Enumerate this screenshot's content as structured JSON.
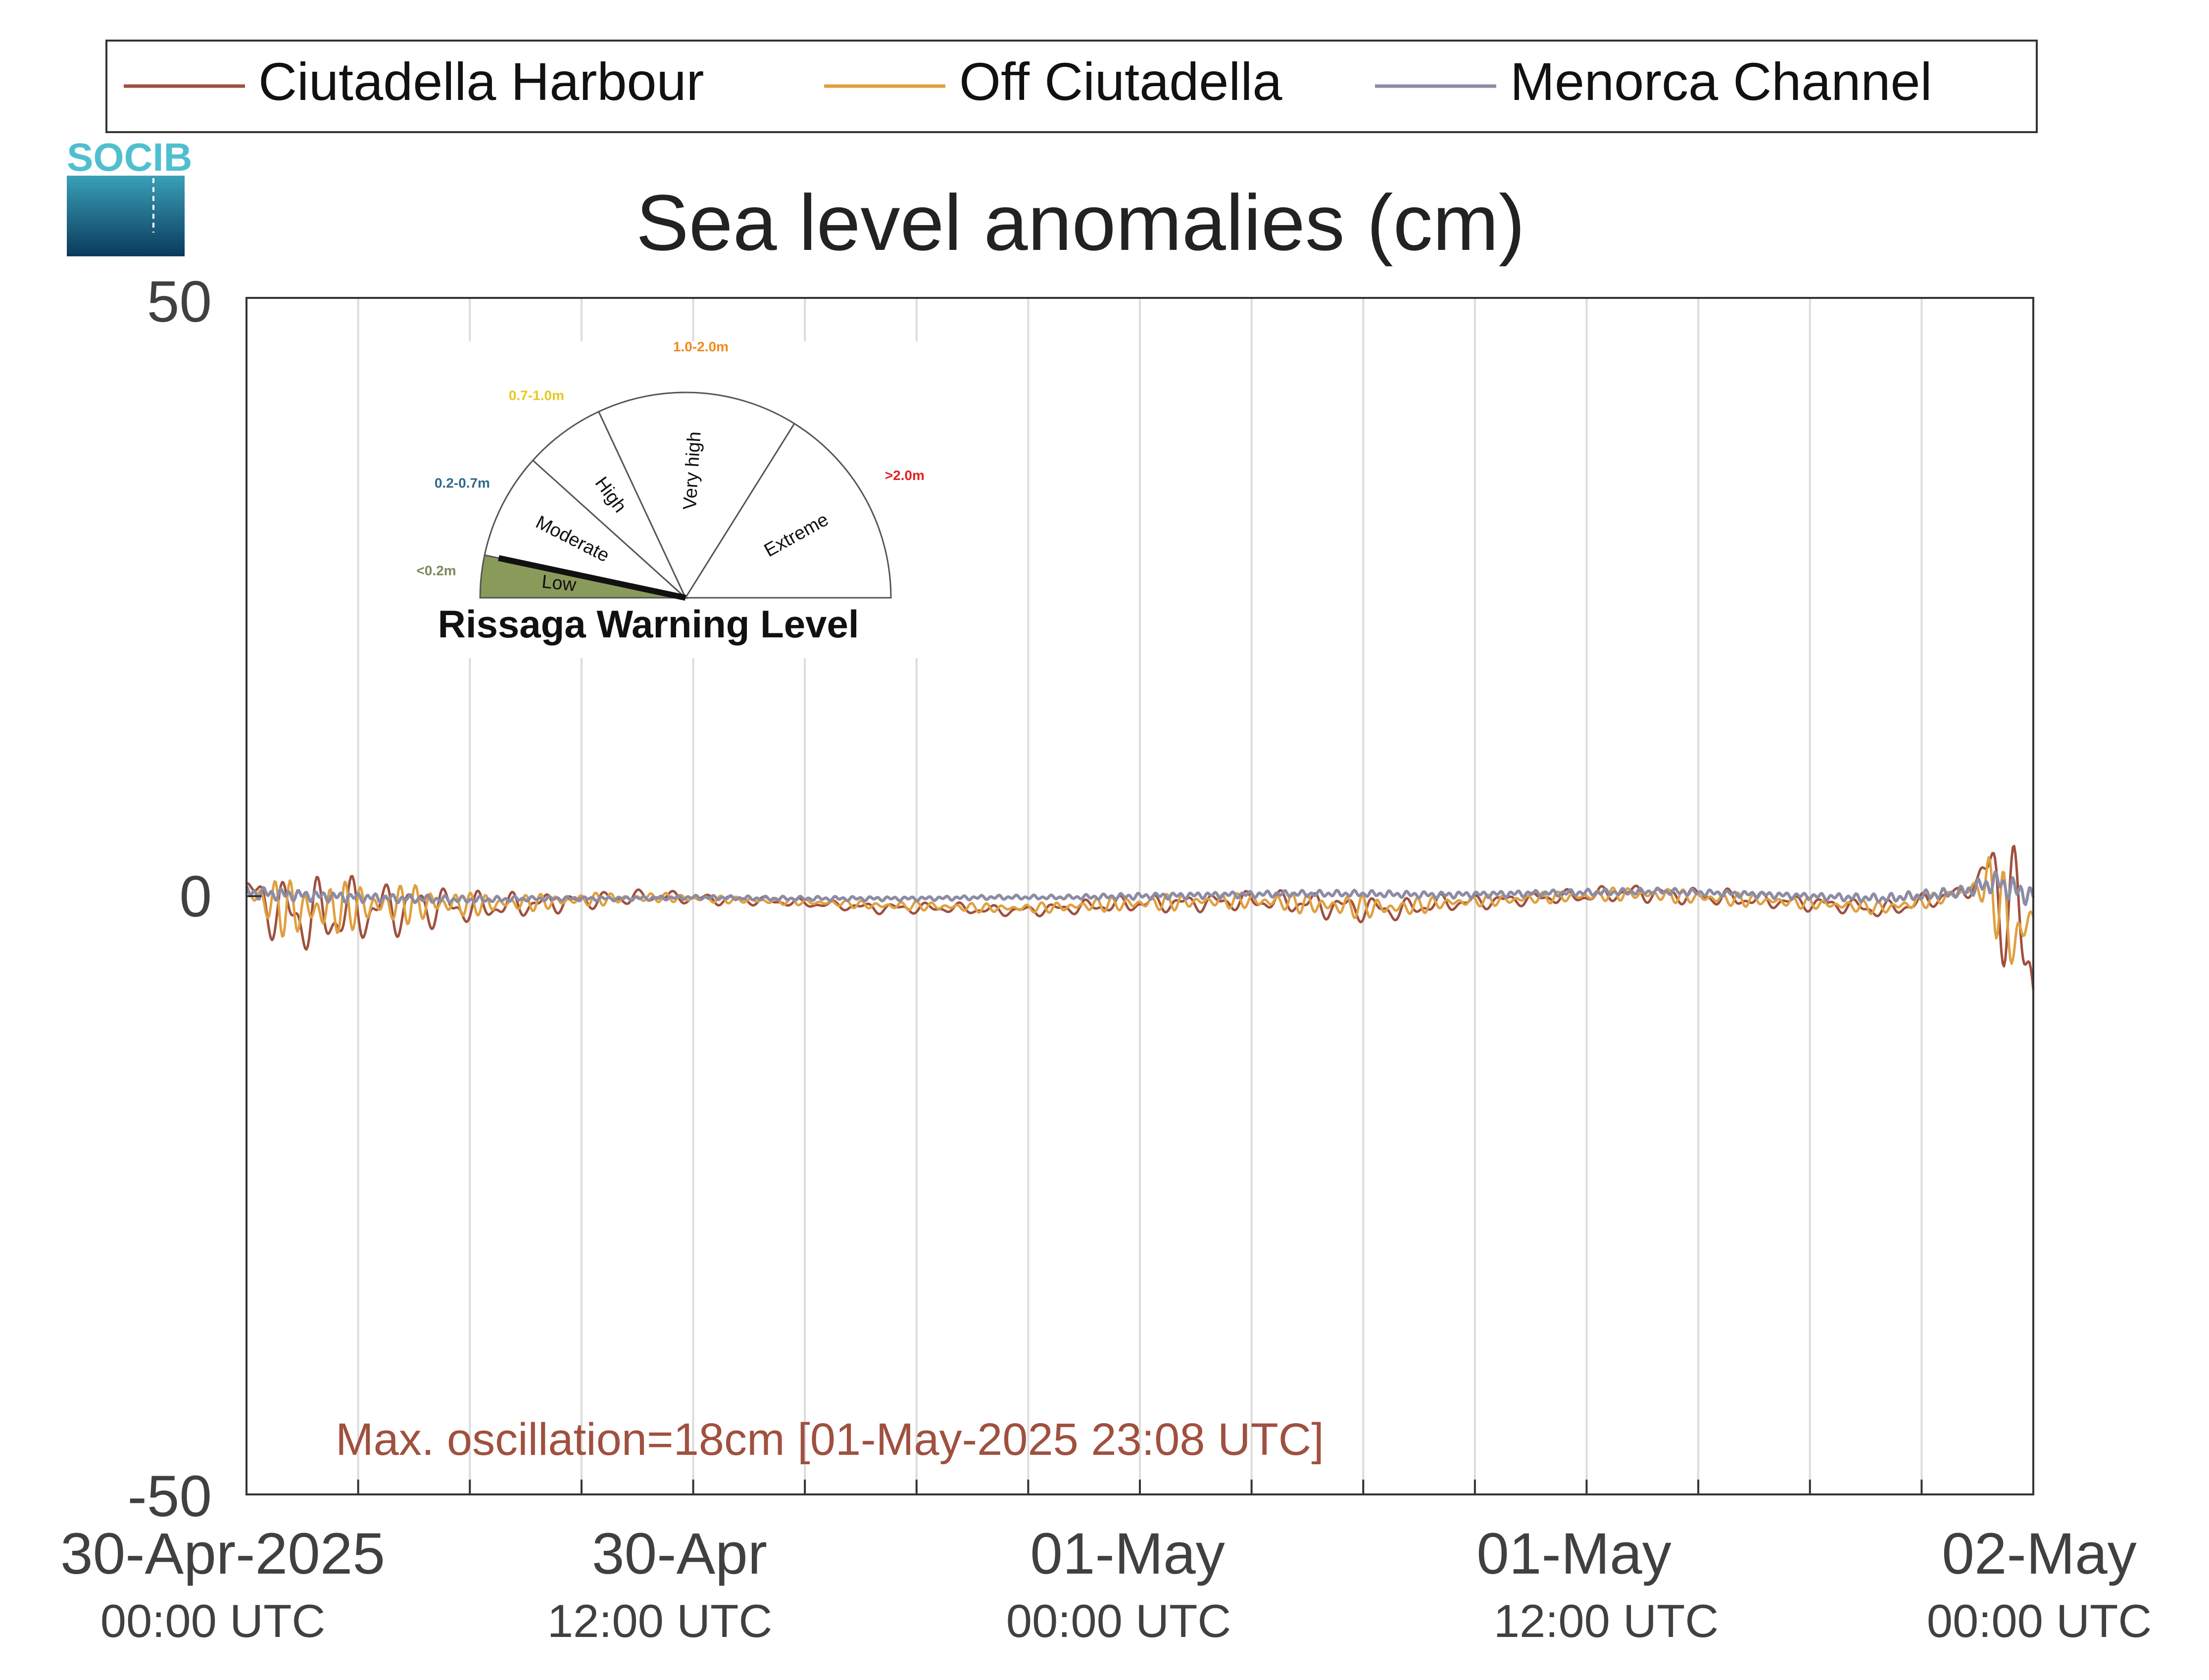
{
  "legend": [
    {
      "name": "Ciutadella Harbour",
      "color": "#a0503f"
    },
    {
      "name": "Off Ciutadella",
      "color": "#e0a040"
    },
    {
      "name": "Menorca Channel",
      "color": "#8c8ca4"
    }
  ],
  "logo": {
    "text": "SOCIB",
    "color": "#4fbfd0"
  },
  "chart_data": {
    "type": "line",
    "title": "Sea level anomalies (cm)",
    "ylim": [
      -50,
      50
    ],
    "yticks": [
      50,
      0,
      -50
    ],
    "ytick_labels": [
      "50",
      "0",
      "-50"
    ],
    "x_unit": "hours since 30-Apr-2025 00:00 UTC",
    "xlim": [
      0,
      48
    ],
    "xticks": [
      {
        "x": 0,
        "date": "30-Apr-2025",
        "time": "00:00 UTC"
      },
      {
        "x": 12,
        "date": "30-Apr",
        "time": "12:00 UTC"
      },
      {
        "x": 24,
        "date": "01-May",
        "time": "00:00 UTC"
      },
      {
        "x": 36,
        "date": "01-May",
        "time": "12:00 UTC"
      },
      {
        "x": 48,
        "date": "02-May",
        "time": "00:00 UTC"
      }
    ],
    "grid_x_hours": [
      0,
      3,
      6,
      9,
      12,
      15,
      18,
      21,
      24,
      27,
      30,
      33,
      36,
      39,
      42,
      45,
      48
    ],
    "grid": "vertical",
    "legend_position": "top",
    "series": [
      {
        "name": "Ciutadella Harbour",
        "x": [
          0,
          1,
          2,
          3,
          4,
          5,
          6,
          7,
          8,
          9,
          10,
          11,
          12,
          13,
          14,
          15,
          16,
          17,
          18,
          19,
          20,
          21,
          22,
          23,
          24,
          25,
          26,
          27,
          28,
          29,
          30,
          31,
          32,
          33,
          34,
          35,
          36,
          37,
          38,
          39,
          40,
          41,
          42,
          43,
          44,
          45,
          46,
          46.5,
          47,
          47.5,
          48
        ],
        "y": [
          0.5,
          -1.5,
          -1.8,
          -1.2,
          -1.0,
          -0.8,
          -1.0,
          -0.8,
          -0.6,
          -0.4,
          -0.2,
          0.0,
          -0.2,
          -0.3,
          -0.4,
          -0.6,
          -0.8,
          -1.0,
          -1.0,
          -1.0,
          -1.2,
          -1.2,
          -1.0,
          -0.8,
          -0.6,
          -0.6,
          -0.5,
          -0.4,
          -0.5,
          -0.8,
          -1.0,
          -1.2,
          -0.6,
          -0.5,
          -0.3,
          -0.1,
          0.0,
          0.3,
          0.2,
          0.0,
          -0.2,
          -0.4,
          -0.6,
          -0.8,
          -1.2,
          -0.5,
          0.3,
          1.0,
          2.5,
          -3.0,
          -5.0
        ],
        "amplitude": [
          1.5,
          3.5,
          3.5,
          3.0,
          2.5,
          2.0,
          1.5,
          1.2,
          1.0,
          0.8,
          0.7,
          0.6,
          0.5,
          0.5,
          0.4,
          0.4,
          0.4,
          0.5,
          0.5,
          0.5,
          0.5,
          0.5,
          0.6,
          0.7,
          0.8,
          0.8,
          0.8,
          0.9,
          1.0,
          1.2,
          1.2,
          1.0,
          0.8,
          0.7,
          0.6,
          0.6,
          0.7,
          0.8,
          0.8,
          0.8,
          0.8,
          0.7,
          0.7,
          0.7,
          0.8,
          0.8,
          0.6,
          1.0,
          6.0,
          8.0,
          8.0
        ]
      },
      {
        "name": "Off Ciutadella",
        "x": [
          0,
          1,
          2,
          3,
          4,
          5,
          6,
          7,
          8,
          9,
          10,
          11,
          12,
          13,
          14,
          15,
          16,
          17,
          18,
          19,
          20,
          21,
          22,
          23,
          24,
          25,
          26,
          27,
          28,
          29,
          30,
          31,
          32,
          33,
          34,
          35,
          36,
          37,
          38,
          39,
          40,
          41,
          42,
          43,
          44,
          45,
          46,
          46.5,
          47,
          47.5,
          48
        ],
        "y": [
          0.2,
          -1.0,
          -1.2,
          -0.8,
          -0.7,
          -0.6,
          -0.7,
          -0.6,
          -0.5,
          -0.3,
          -0.2,
          -0.1,
          -0.2,
          -0.3,
          -0.4,
          -0.5,
          -0.6,
          -0.8,
          -0.8,
          -0.9,
          -1.0,
          -1.0,
          -0.9,
          -0.7,
          -0.6,
          -0.5,
          -0.4,
          -0.4,
          -0.5,
          -0.8,
          -0.9,
          -1.0,
          -0.6,
          -0.4,
          -0.3,
          -0.1,
          0.0,
          0.2,
          0.1,
          -0.1,
          -0.3,
          -0.4,
          -0.6,
          -0.8,
          -1.0,
          -0.5,
          0.2,
          0.8,
          0.5,
          -4.0,
          -1.5
        ],
        "amplitude": [
          1.0,
          2.5,
          2.5,
          2.0,
          1.8,
          1.5,
          1.0,
          0.8,
          0.7,
          0.6,
          0.5,
          0.4,
          0.4,
          0.3,
          0.3,
          0.3,
          0.3,
          0.4,
          0.4,
          0.4,
          0.4,
          0.4,
          0.5,
          0.6,
          0.7,
          0.7,
          0.6,
          0.7,
          0.8,
          1.0,
          1.0,
          0.8,
          0.6,
          0.5,
          0.5,
          0.5,
          0.5,
          0.6,
          0.6,
          0.6,
          0.6,
          0.5,
          0.5,
          0.5,
          0.6,
          0.6,
          0.5,
          0.8,
          4.0,
          3.5,
          2.0
        ]
      },
      {
        "name": "Menorca Channel",
        "x": [
          0,
          2,
          4,
          6,
          8,
          10,
          12,
          14,
          16,
          18,
          20,
          22,
          24,
          26,
          28,
          30,
          32,
          34,
          36,
          38,
          40,
          42,
          44,
          46,
          47,
          47.5,
          48
        ],
        "y": [
          0.3,
          0.0,
          -0.2,
          -0.3,
          -0.2,
          -0.2,
          -0.1,
          -0.2,
          -0.2,
          -0.2,
          -0.1,
          -0.1,
          0.0,
          0.1,
          0.2,
          0.2,
          0.1,
          0.2,
          0.3,
          0.4,
          0.2,
          0.0,
          -0.2,
          0.3,
          1.2,
          0.5,
          0.0
        ],
        "amplitude": [
          0.6,
          0.5,
          0.4,
          0.3,
          0.2,
          0.2,
          0.2,
          0.2,
          0.2,
          0.2,
          0.2,
          0.2,
          0.3,
          0.3,
          0.3,
          0.3,
          0.3,
          0.3,
          0.3,
          0.3,
          0.3,
          0.3,
          0.4,
          0.5,
          1.0,
          1.2,
          0.8
        ]
      }
    ],
    "annotation": "Max. oscillation=18cm [01-May-2025 23:08 UTC]"
  },
  "gauge": {
    "title": "Rissaga Warning Level",
    "level": "Low",
    "value_m": 0.1,
    "sectors": [
      {
        "label": "Low",
        "range": "<0.2m",
        "color": "#8a9a5b",
        "range_color": "#7a8a5b"
      },
      {
        "label": "Moderate",
        "range": "0.2-0.7m",
        "color": "#ffffff",
        "range_color": "#2e6a8a"
      },
      {
        "label": "High",
        "range": "0.7-1.0m",
        "color": "#ffffff",
        "range_color": "#e8c820"
      },
      {
        "label": "Very high",
        "range": "1.0-2.0m",
        "color": "#ffffff",
        "range_color": "#f08a20"
      },
      {
        "label": "Extreme",
        "range": ">2.0m",
        "color": "#ffffff",
        "range_color": "#e02020"
      }
    ]
  }
}
